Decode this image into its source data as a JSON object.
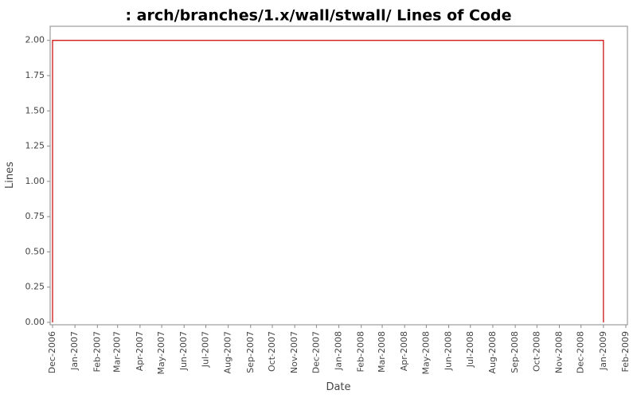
{
  "chart_data": {
    "type": "line",
    "title": ": arch/branches/1.x/wall/stwall/ Lines of Code",
    "x_label": "Date",
    "y_label": "Lines",
    "x": [
      "2006-12",
      "2006-12",
      "2009-01",
      "2009-01"
    ],
    "series": [
      {
        "name": "Lines",
        "color": "#cc0000",
        "values": [
          0,
          2,
          2,
          0
        ]
      }
    ],
    "xlim": [
      "2006-12",
      "2009-02"
    ],
    "xticks": [
      {
        "value": "2006-12",
        "label": "Dec-2006"
      },
      {
        "value": "2007-01",
        "label": "Jan-2007"
      },
      {
        "value": "2007-02",
        "label": "Feb-2007"
      },
      {
        "value": "2007-03",
        "label": "Mar-2007"
      },
      {
        "value": "2007-04",
        "label": "Apr-2007"
      },
      {
        "value": "2007-05",
        "label": "May-2007"
      },
      {
        "value": "2007-06",
        "label": "Jun-2007"
      },
      {
        "value": "2007-07",
        "label": "Jul-2007"
      },
      {
        "value": "2007-08",
        "label": "Aug-2007"
      },
      {
        "value": "2007-09",
        "label": "Sep-2007"
      },
      {
        "value": "2007-10",
        "label": "Oct-2007"
      },
      {
        "value": "2007-11",
        "label": "Nov-2007"
      },
      {
        "value": "2007-12",
        "label": "Dec-2007"
      },
      {
        "value": "2008-01",
        "label": "Jan-2008"
      },
      {
        "value": "2008-02",
        "label": "Feb-2008"
      },
      {
        "value": "2008-03",
        "label": "Mar-2008"
      },
      {
        "value": "2008-04",
        "label": "Apr-2008"
      },
      {
        "value": "2008-05",
        "label": "May-2008"
      },
      {
        "value": "2008-06",
        "label": "Jun-2008"
      },
      {
        "value": "2008-07",
        "label": "Jul-2008"
      },
      {
        "value": "2008-08",
        "label": "Aug-2008"
      },
      {
        "value": "2008-09",
        "label": "Sep-2008"
      },
      {
        "value": "2008-10",
        "label": "Oct-2008"
      },
      {
        "value": "2008-11",
        "label": "Nov-2008"
      },
      {
        "value": "2008-12",
        "label": "Dec-2008"
      },
      {
        "value": "2009-01",
        "label": "Jan-2009"
      },
      {
        "value": "2009-02",
        "label": "Feb-2009"
      }
    ],
    "ylim": [
      0,
      2.1
    ],
    "yticks": [
      {
        "value": 0,
        "label": "0.00"
      },
      {
        "value": 0.25,
        "label": "0.25"
      },
      {
        "value": 0.5,
        "label": "0.50"
      },
      {
        "value": 0.75,
        "label": "0.75"
      },
      {
        "value": 1,
        "label": "1.00"
      },
      {
        "value": 1.25,
        "label": "1.25"
      },
      {
        "value": 1.5,
        "label": "1.50"
      },
      {
        "value": 1.75,
        "label": "1.75"
      },
      {
        "value": 2,
        "label": "2.00"
      }
    ]
  }
}
